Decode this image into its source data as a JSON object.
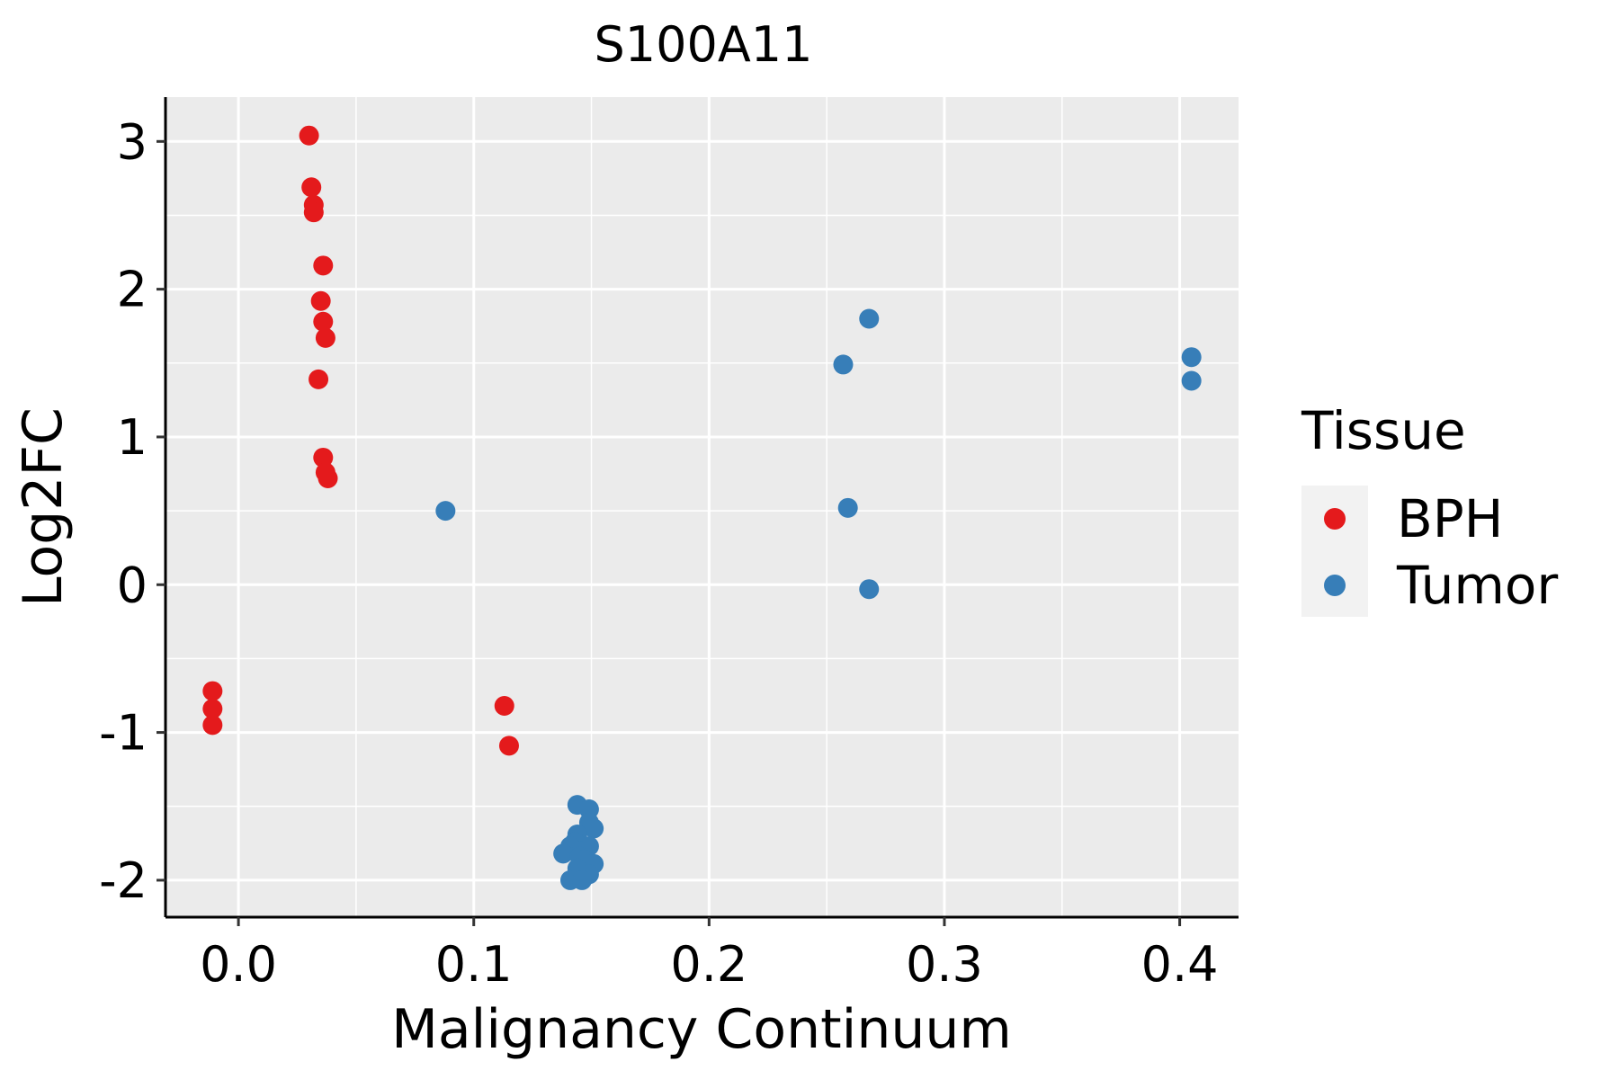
{
  "chart_data": {
    "type": "scatter",
    "title": "S100A11",
    "xlabel": "Malignancy Continuum",
    "ylabel": "Log2FC",
    "xlim": [
      -0.031,
      0.425
    ],
    "ylim": [
      -2.25,
      3.3
    ],
    "x_ticks": [
      0.0,
      0.1,
      0.2,
      0.3,
      0.4
    ],
    "x_tick_labels": [
      "0.0",
      "0.1",
      "0.2",
      "0.3",
      "0.4"
    ],
    "x_minor_ticks": [
      0.05,
      0.15,
      0.25,
      0.35
    ],
    "y_ticks": [
      -2,
      -1,
      0,
      1,
      2,
      3
    ],
    "y_tick_labels": [
      "-2",
      "-1",
      "0",
      "1",
      "2",
      "3"
    ],
    "y_minor_ticks": [
      -1.5,
      -0.5,
      0.5,
      1.5,
      2.5
    ],
    "grid": true,
    "legend": {
      "title": "Tissue",
      "position": "right",
      "entries": [
        {
          "label": "BPH",
          "color": "#e41a1c"
        },
        {
          "label": "Tumor",
          "color": "#377eb8"
        }
      ]
    },
    "series": [
      {
        "name": "BPH",
        "color": "#e41a1c",
        "points": [
          [
            0.03,
            3.04
          ],
          [
            0.031,
            2.69
          ],
          [
            0.032,
            2.57
          ],
          [
            0.032,
            2.52
          ],
          [
            0.036,
            2.16
          ],
          [
            0.035,
            1.92
          ],
          [
            0.036,
            1.78
          ],
          [
            0.037,
            1.67
          ],
          [
            0.034,
            1.39
          ],
          [
            0.036,
            0.86
          ],
          [
            0.037,
            0.76
          ],
          [
            0.038,
            0.72
          ],
          [
            -0.011,
            -0.72
          ],
          [
            -0.011,
            -0.84
          ],
          [
            -0.011,
            -0.95
          ],
          [
            0.113,
            -0.82
          ],
          [
            0.115,
            -1.09
          ]
        ]
      },
      {
        "name": "Tumor",
        "color": "#377eb8",
        "points": [
          [
            0.088,
            0.5
          ],
          [
            0.268,
            1.8
          ],
          [
            0.257,
            1.49
          ],
          [
            0.259,
            0.52
          ],
          [
            0.268,
            -0.03
          ],
          [
            0.405,
            1.54
          ],
          [
            0.405,
            1.38
          ],
          [
            0.144,
            -1.49
          ],
          [
            0.149,
            -1.52
          ],
          [
            0.149,
            -1.61
          ],
          [
            0.151,
            -1.65
          ],
          [
            0.144,
            -1.69
          ],
          [
            0.143,
            -1.74
          ],
          [
            0.141,
            -1.77
          ],
          [
            0.149,
            -1.77
          ],
          [
            0.146,
            -1.8
          ],
          [
            0.138,
            -1.82
          ],
          [
            0.145,
            -1.84
          ],
          [
            0.147,
            -1.86
          ],
          [
            0.151,
            -1.89
          ],
          [
            0.144,
            -1.92
          ],
          [
            0.149,
            -1.96
          ],
          [
            0.141,
            -2.0
          ],
          [
            0.146,
            -2.0
          ]
        ]
      }
    ]
  }
}
